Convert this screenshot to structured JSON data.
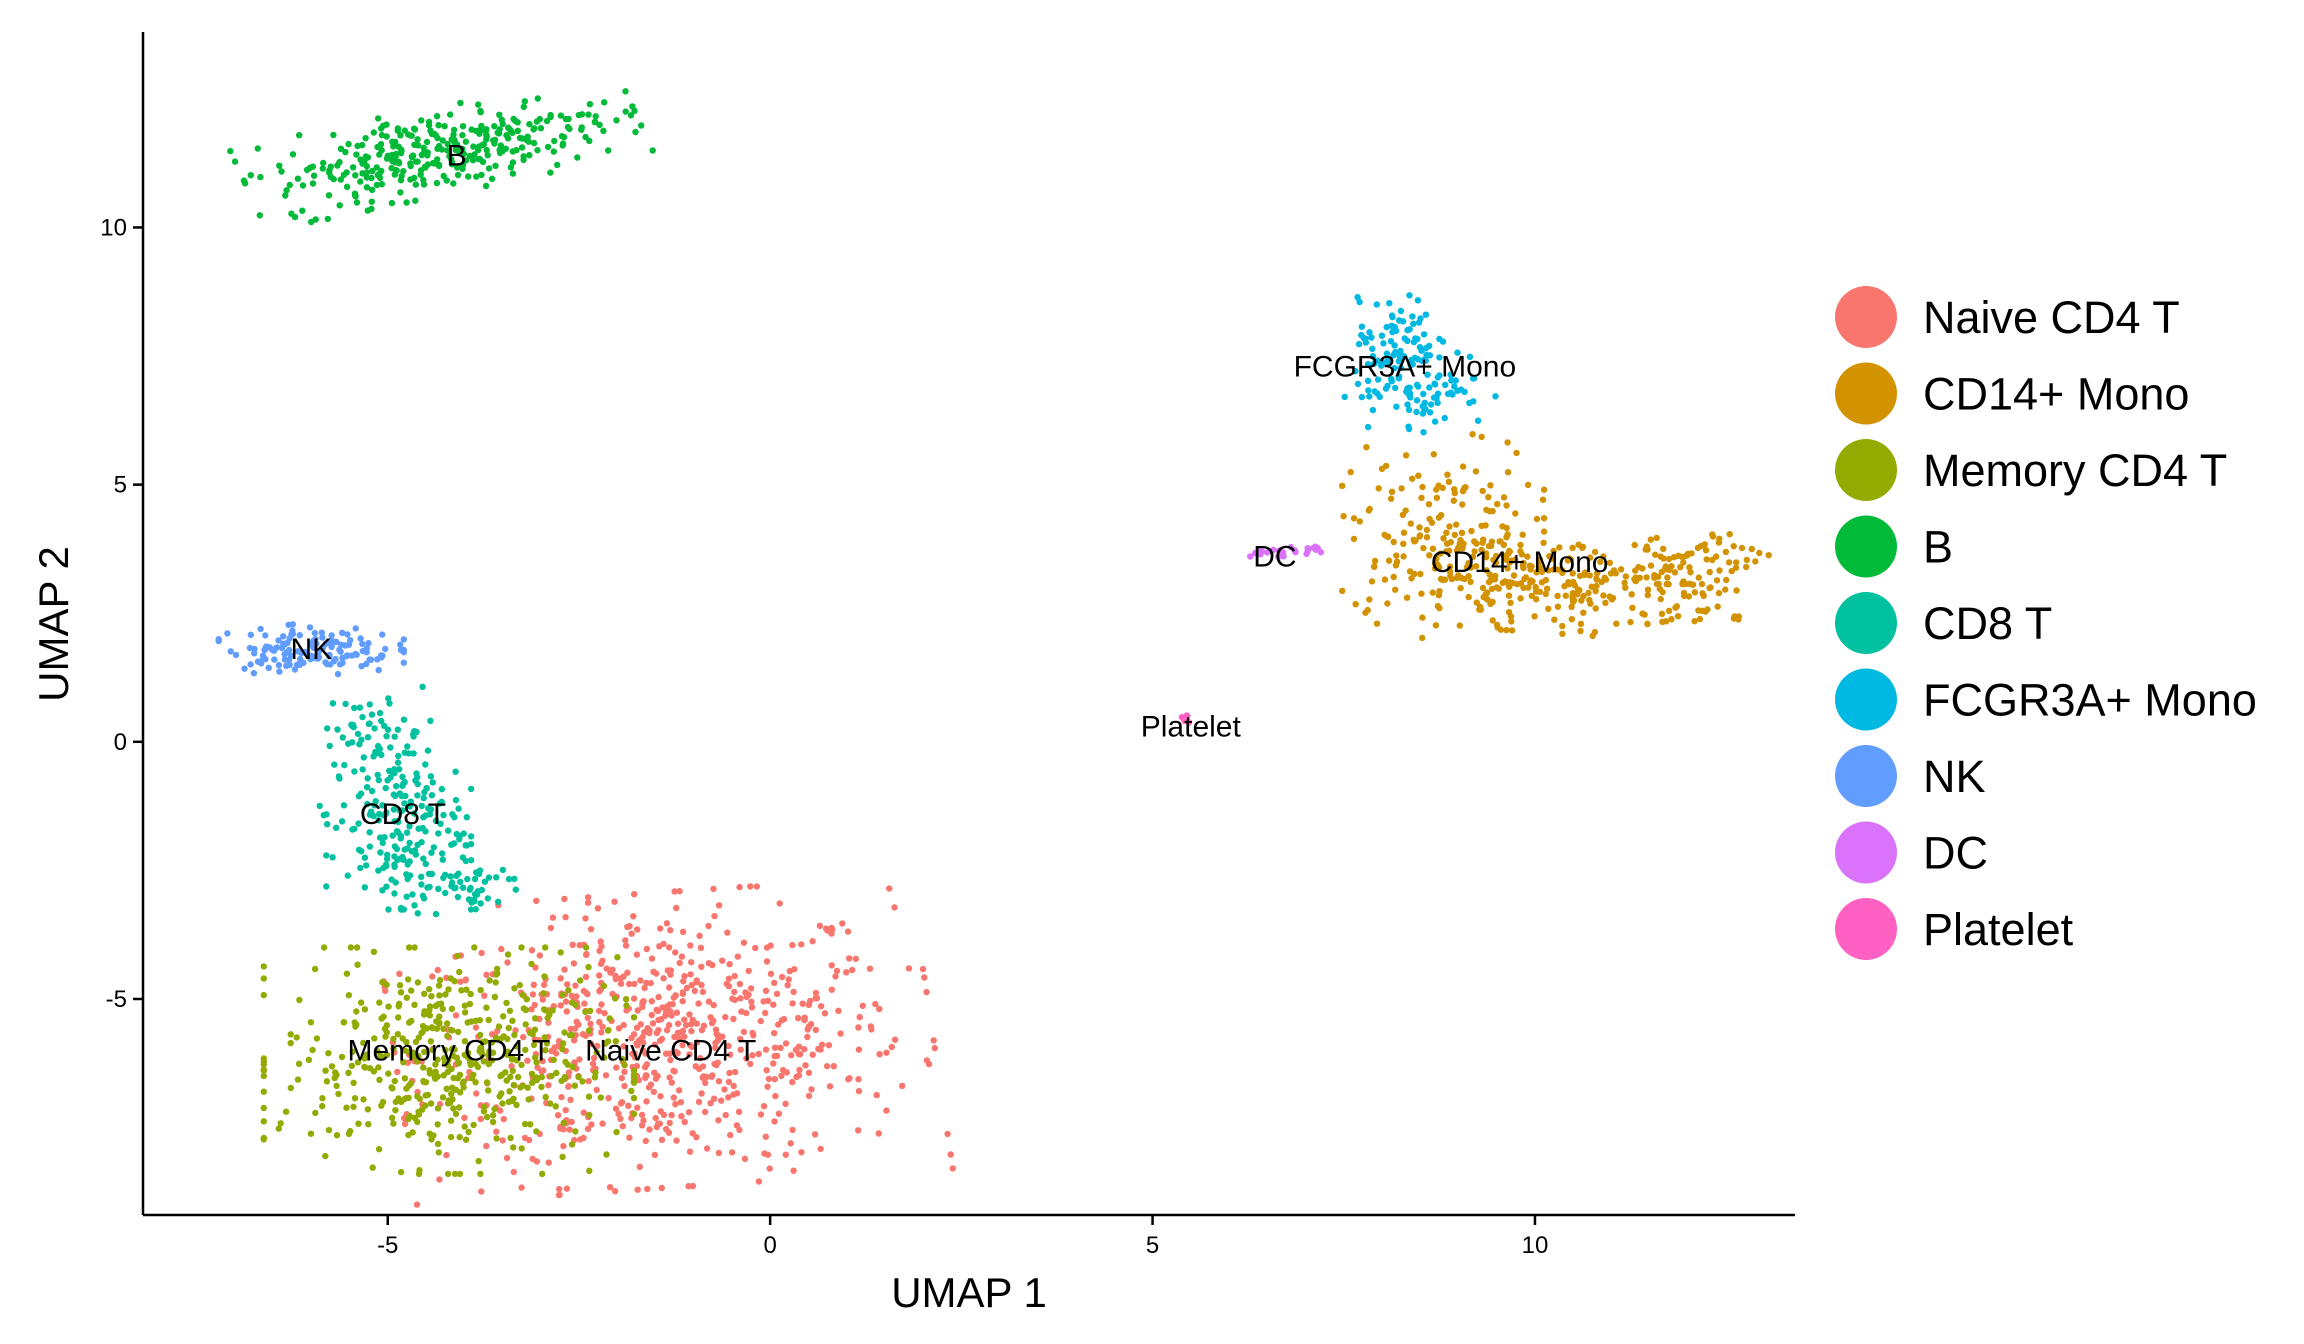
{
  "chart_data": {
    "type": "scatter",
    "title": "",
    "xlabel": "UMAP 1",
    "ylabel": "UMAP 2",
    "xlim": [
      -8.2,
      13.4
    ],
    "ylim": [
      -9.2,
      13.8
    ],
    "xticks": [
      -5,
      0,
      5,
      10
    ],
    "yticks": [
      -5,
      0,
      5,
      10
    ],
    "xtick_labels": [
      "-5",
      "0",
      "5",
      "10"
    ],
    "ytick_labels": [
      "-5",
      "0",
      "5",
      "10"
    ],
    "grid": false,
    "legend_position": "right",
    "series": [
      {
        "name": "Naive CD4 T",
        "color": "#F8766D",
        "label": "Naive CD4 T",
        "label_pos": [
          -1.3,
          -6.0
        ],
        "clusters": [
          {
            "cx": -1.4,
            "cy": -5.8,
            "sx": 1.6,
            "sy": 1.3,
            "n": 700,
            "rot": 0.1
          }
        ]
      },
      {
        "name": "CD14+ Mono",
        "color": "#D39200",
        "label": "CD14+ Mono",
        "label_pos": [
          9.8,
          3.5
        ],
        "clusters": [
          {
            "cx": 8.8,
            "cy": 4.0,
            "sx": 0.6,
            "sy": 0.9,
            "n": 160,
            "rot": 0.0
          },
          {
            "cx": 10.3,
            "cy": 3.1,
            "sx": 1.1,
            "sy": 0.45,
            "n": 230,
            "rot": -0.1
          },
          {
            "cx": 12.0,
            "cy": 3.3,
            "sx": 0.5,
            "sy": 0.35,
            "n": 90,
            "rot": 0.4
          }
        ]
      },
      {
        "name": "Memory CD4 T",
        "color": "#93AA00",
        "label": "Memory CD4 T",
        "label_pos": [
          -4.2,
          -6.0
        ],
        "clusters": [
          {
            "cx": -4.2,
            "cy": -6.2,
            "sx": 1.1,
            "sy": 1.0,
            "n": 480,
            "rot": 0.0
          }
        ]
      },
      {
        "name": "B",
        "color": "#00BA38",
        "label": "B",
        "label_pos": [
          -4.1,
          11.4
        ],
        "clusters": [
          {
            "cx": -4.3,
            "cy": 11.5,
            "sx": 1.2,
            "sy": 0.38,
            "n": 340,
            "rot": 0.3
          }
        ]
      },
      {
        "name": "CD8 T",
        "color": "#00C19F",
        "label": "CD8 T",
        "label_pos": [
          -4.8,
          -1.4
        ],
        "clusters": [
          {
            "cx": -5.1,
            "cy": 0.3,
            "sx": 0.35,
            "sy": 0.35,
            "n": 40,
            "rot": 0.0
          },
          {
            "cx": -4.9,
            "cy": -1.5,
            "sx": 0.45,
            "sy": 0.8,
            "n": 190,
            "rot": 0.0
          },
          {
            "cx": -4.2,
            "cy": -2.8,
            "sx": 0.5,
            "sy": 0.25,
            "n": 60,
            "rot": 0.0
          }
        ]
      },
      {
        "name": "FCGR3A+ Mono",
        "color": "#00B9E3",
        "label": "FCGR3A+ Mono",
        "label_pos": [
          8.3,
          7.3
        ],
        "clusters": [
          {
            "cx": 8.2,
            "cy": 7.8,
            "sx": 0.25,
            "sy": 0.4,
            "n": 70,
            "rot": 0.0
          },
          {
            "cx": 8.5,
            "cy": 6.9,
            "sx": 0.45,
            "sy": 0.4,
            "n": 90,
            "rot": 0.0
          }
        ]
      },
      {
        "name": "NK",
        "color": "#619CFF",
        "label": "NK",
        "label_pos": [
          -6.0,
          1.8
        ],
        "clusters": [
          {
            "cx": -6.0,
            "cy": 1.8,
            "sx": 0.55,
            "sy": 0.22,
            "n": 140,
            "rot": 0.0
          }
        ]
      },
      {
        "name": "DC",
        "color": "#DB72FB",
        "label": "DC",
        "label_pos": [
          6.6,
          3.6
        ],
        "clusters": [
          {
            "cx": 6.7,
            "cy": 3.7,
            "sx": 0.3,
            "sy": 0.05,
            "n": 28,
            "rot": 0.1
          }
        ]
      },
      {
        "name": "Platelet",
        "color": "#FF61C3",
        "label": "Platelet",
        "label_pos": [
          5.5,
          0.3
        ],
        "clusters": [
          {
            "cx": 5.45,
            "cy": 0.45,
            "sx": 0.03,
            "sy": 0.05,
            "n": 8,
            "rot": 0.0
          }
        ]
      }
    ]
  }
}
